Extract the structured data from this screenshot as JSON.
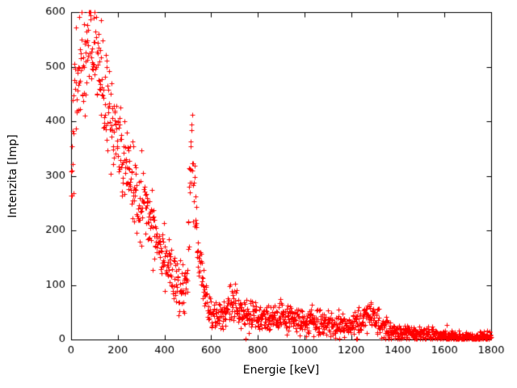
{
  "chart_data": {
    "type": "scatter",
    "title": "",
    "xlabel": "Energie [keV]",
    "ylabel": "Intenzita [Imp]",
    "xlim": [
      0,
      1800
    ],
    "ylim": [
      0,
      600
    ],
    "xticks": [
      0,
      200,
      400,
      600,
      800,
      1000,
      1200,
      1400,
      1600,
      1800
    ],
    "yticks": [
      0,
      100,
      200,
      300,
      400,
      500,
      600
    ],
    "grid": false,
    "legend": "none",
    "marker": "plus",
    "marker_color": "#ff0000",
    "axis_color": "#000000",
    "background": "#ffffff",
    "description": "Gamma spectrum: steep low-energy continuum up to ~600 Imp, annihilation peak at 511 keV (~420 Imp), Compton bump near 700 keV (~70 Imp), flat plateau ~35 Imp from 750-1150 keV, photopeak bump at ~1275 keV (~55 Imp), tail falling to ~5 Imp at 1800 keV",
    "profile": [
      [
        0,
        300
      ],
      [
        5,
        380
      ],
      [
        15,
        440
      ],
      [
        30,
        480
      ],
      [
        50,
        510
      ],
      [
        70,
        530
      ],
      [
        90,
        545
      ],
      [
        110,
        520
      ],
      [
        130,
        470
      ],
      [
        150,
        430
      ],
      [
        170,
        400
      ],
      [
        190,
        370
      ],
      [
        210,
        340
      ],
      [
        230,
        320
      ],
      [
        250,
        300
      ],
      [
        270,
        280
      ],
      [
        290,
        262
      ],
      [
        310,
        248
      ],
      [
        330,
        228
      ],
      [
        350,
        208
      ],
      [
        370,
        188
      ],
      [
        390,
        168
      ],
      [
        410,
        148
      ],
      [
        430,
        125
      ],
      [
        450,
        100
      ],
      [
        465,
        88
      ],
      [
        480,
        80
      ],
      [
        490,
        88
      ],
      [
        498,
        130
      ],
      [
        504,
        220
      ],
      [
        509,
        330
      ],
      [
        513,
        390
      ],
      [
        517,
        370
      ],
      [
        522,
        310
      ],
      [
        528,
        250
      ],
      [
        535,
        200
      ],
      [
        545,
        158
      ],
      [
        555,
        128
      ],
      [
        565,
        102
      ],
      [
        575,
        82
      ],
      [
        585,
        62
      ],
      [
        595,
        50
      ],
      [
        610,
        42
      ],
      [
        630,
        40
      ],
      [
        650,
        45
      ],
      [
        670,
        55
      ],
      [
        685,
        65
      ],
      [
        697,
        70
      ],
      [
        710,
        64
      ],
      [
        725,
        54
      ],
      [
        745,
        45
      ],
      [
        770,
        40
      ],
      [
        800,
        38
      ],
      [
        850,
        37
      ],
      [
        900,
        38
      ],
      [
        950,
        36
      ],
      [
        1000,
        35
      ],
      [
        1050,
        32
      ],
      [
        1100,
        28
      ],
      [
        1150,
        25
      ],
      [
        1200,
        24
      ],
      [
        1230,
        30
      ],
      [
        1255,
        42
      ],
      [
        1272,
        50
      ],
      [
        1288,
        46
      ],
      [
        1305,
        36
      ],
      [
        1325,
        26
      ],
      [
        1350,
        19
      ],
      [
        1400,
        14
      ],
      [
        1450,
        12
      ],
      [
        1500,
        10
      ],
      [
        1550,
        9
      ],
      [
        1600,
        7
      ],
      [
        1650,
        6
      ],
      [
        1700,
        5
      ],
      [
        1750,
        5
      ],
      [
        1800,
        5
      ]
    ],
    "noise": {
      "type": "gaussian-sqrt",
      "k": 2.2,
      "seed": 42
    },
    "x_step": 1.2
  }
}
